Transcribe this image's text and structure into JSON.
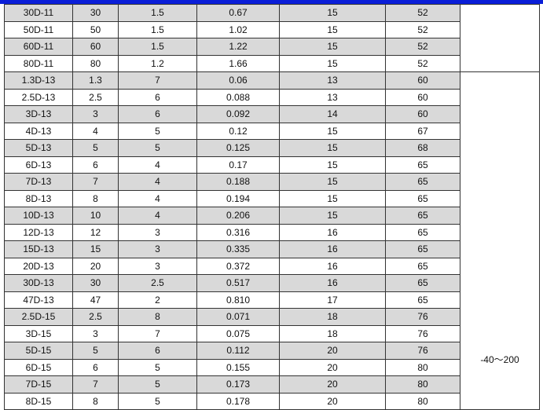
{
  "colors": {
    "top_bar": "#0a1ed8",
    "row_shade": "#d9d9d9"
  },
  "rows": [
    [
      "30D-11",
      "30",
      "1.5",
      "0.67",
      "15",
      "52"
    ],
    [
      "50D-11",
      "50",
      "1.5",
      "1.02",
      "15",
      "52"
    ],
    [
      "60D-11",
      "60",
      "1.5",
      "1.22",
      "15",
      "52"
    ],
    [
      "80D-11",
      "80",
      "1.2",
      "1.66",
      "15",
      "52"
    ],
    [
      "1.3D-13",
      "1.3",
      "7",
      "0.06",
      "13",
      "60"
    ],
    [
      "2.5D-13",
      "2.5",
      "6",
      "0.088",
      "13",
      "60"
    ],
    [
      "3D-13",
      "3",
      "6",
      "0.092",
      "14",
      "60"
    ],
    [
      "4D-13",
      "4",
      "5",
      "0.12",
      "15",
      "67"
    ],
    [
      "5D-13",
      "5",
      "5",
      "0.125",
      "15",
      "68"
    ],
    [
      "6D-13",
      "6",
      "4",
      "0.17",
      "15",
      "65"
    ],
    [
      "7D-13",
      "7",
      "4",
      "0.188",
      "15",
      "65"
    ],
    [
      "8D-13",
      "8",
      "4",
      "0.194",
      "15",
      "65"
    ],
    [
      "10D-13",
      "10",
      "4",
      "0.206",
      "15",
      "65"
    ],
    [
      "12D-13",
      "12",
      "3",
      "0.316",
      "16",
      "65"
    ],
    [
      "15D-13",
      "15",
      "3",
      "0.335",
      "16",
      "65"
    ],
    [
      "20D-13",
      "20",
      "3",
      "0.372",
      "16",
      "65"
    ],
    [
      "30D-13",
      "30",
      "2.5",
      "0.517",
      "16",
      "65"
    ],
    [
      "47D-13",
      "47",
      "2",
      "0.810",
      "17",
      "65"
    ],
    [
      "2.5D-15",
      "2.5",
      "8",
      "0.071",
      "18",
      "76"
    ],
    [
      "3D-15",
      "3",
      "7",
      "0.075",
      "18",
      "76"
    ],
    [
      "5D-15",
      "5",
      "6",
      "0.112",
      "20",
      "76"
    ],
    [
      "6D-15",
      "6",
      "5",
      "0.155",
      "20",
      "80"
    ],
    [
      "7D-15",
      "7",
      "5",
      "0.173",
      "20",
      "80"
    ],
    [
      "8D-15",
      "8",
      "5",
      "0.178",
      "20",
      "80"
    ]
  ],
  "merged": {
    "group1": "",
    "group2": "-40～200"
  }
}
